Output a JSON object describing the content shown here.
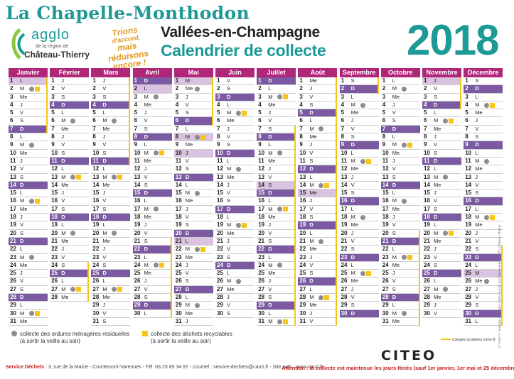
{
  "header": {
    "town": "La Chapelle-Monthodon",
    "logo_name": "agglo",
    "logo_region": "de la région de",
    "logo_city": "Château-Thierry",
    "slogan": [
      "Trions",
      "d'accord,",
      "mais réduisons",
      "encore !"
    ],
    "title_line1": "Vallées-en-Champagne",
    "title_line2": "Calendrier de collecte",
    "year": "2018"
  },
  "colors": {
    "teal": "#1d9a95",
    "magenta": "#b0277a",
    "sunday_purple": "#7c5aa3",
    "holiday_lilac": "#d9c3e0",
    "recycling_yellow": "#f5c518",
    "household_gray": "#8c8c8c",
    "alert_red": "#c51a1a"
  },
  "months": [
    {
      "name": "Janvier",
      "first_weekday": 0,
      "days": 31,
      "gray": [
        2,
        9,
        16,
        23,
        30
      ],
      "yellow": [
        2,
        16,
        30
      ],
      "holidays": [
        1
      ],
      "vacation": [
        [
          1,
          7
        ]
      ]
    },
    {
      "name": "Février",
      "first_weekday": 3,
      "days": 28,
      "gray": [
        6,
        13,
        20,
        27
      ],
      "yellow": [
        13,
        27
      ],
      "holidays": [],
      "vacation": [
        [
          24,
          28
        ]
      ]
    },
    {
      "name": "Mars",
      "first_weekday": 3,
      "days": 31,
      "gray": [
        6,
        13,
        20,
        27
      ],
      "yellow": [
        13,
        27
      ],
      "holidays": [],
      "vacation": [
        [
          1,
          11
        ]
      ]
    },
    {
      "name": "Avril",
      "first_weekday": 6,
      "days": 30,
      "gray": [
        3,
        10,
        17,
        24
      ],
      "yellow": [
        10,
        24
      ],
      "holidays": [
        1,
        2
      ],
      "vacation": [
        [
          21,
          30
        ]
      ]
    },
    {
      "name": "Mai",
      "first_weekday": 1,
      "days": 31,
      "gray": [
        2,
        8,
        15,
        22,
        29
      ],
      "yellow": [
        8,
        22
      ],
      "holidays": [
        1,
        8,
        10,
        20,
        21
      ],
      "vacation": [
        [
          1,
          6
        ]
      ]
    },
    {
      "name": "Juin",
      "first_weekday": 4,
      "days": 30,
      "gray": [
        5,
        12,
        19,
        26
      ],
      "yellow": [
        5,
        19
      ],
      "holidays": [],
      "vacation": []
    },
    {
      "name": "Juillet",
      "first_weekday": 6,
      "days": 31,
      "gray": [
        3,
        10,
        17,
        24,
        31
      ],
      "yellow": [
        3,
        17,
        31
      ],
      "holidays": [
        14
      ],
      "vacation": [
        [
          7,
          31
        ]
      ]
    },
    {
      "name": "Août",
      "first_weekday": 2,
      "days": 31,
      "gray": [
        7,
        14,
        21,
        28
      ],
      "yellow": [
        14,
        28
      ],
      "holidays": [
        15
      ],
      "vacation": [
        [
          1,
          31
        ]
      ]
    },
    {
      "name": "Septembre",
      "first_weekday": 5,
      "days": 30,
      "gray": [
        4,
        11,
        18,
        25
      ],
      "yellow": [
        11,
        25
      ],
      "holidays": [],
      "vacation": [
        [
          1,
          2
        ]
      ]
    },
    {
      "name": "Octobre",
      "first_weekday": 0,
      "days": 31,
      "gray": [
        2,
        9,
        16,
        23,
        30
      ],
      "yellow": [
        9,
        23
      ],
      "holidays": [],
      "vacation": [
        [
          20,
          31
        ]
      ]
    },
    {
      "name": "Novembre",
      "first_weekday": 3,
      "days": 30,
      "gray": [
        6,
        13,
        20,
        27
      ],
      "yellow": [
        6,
        20
      ],
      "holidays": [
        1,
        11
      ],
      "vacation": [
        [
          1,
          4
        ]
      ]
    },
    {
      "name": "Décembre",
      "first_weekday": 5,
      "days": 31,
      "gray": [
        4,
        11,
        18,
        26
      ],
      "yellow": [
        4,
        18
      ],
      "holidays": [
        25
      ],
      "vacation": [
        [
          22,
          31
        ]
      ]
    }
  ],
  "weekday_letters": [
    "L",
    "M",
    "Me",
    "J",
    "V",
    "S",
    "D"
  ],
  "legend": {
    "gray_label": "collecte des ordures ménagères résiduelles",
    "gray_sub": "(à sortir la veille au soir)",
    "yellow_label": "collecte des déchets recyclables",
    "yellow_sub": "(à sortir la veille au soir)",
    "conges": "Congés scolaires zone B"
  },
  "sponsor": "CITEO",
  "credits": "© CARCT - imprimé sur papier 100% recyclé par l'imprimerie Hénaff à Château-Thierry",
  "footer": {
    "service_label": "Service Déchets",
    "service_info": " : 3, rue de la Mairie - Courtemont-Varennes - Tél. 03 23 85 34 97 - courriel : service-dechets@carct.fr - Site web : www.carct.fr",
    "attention": "Attention : la collecte est maintenue les jours fériés (sauf 1er janvier, 1er mai et 25 décembre)"
  }
}
